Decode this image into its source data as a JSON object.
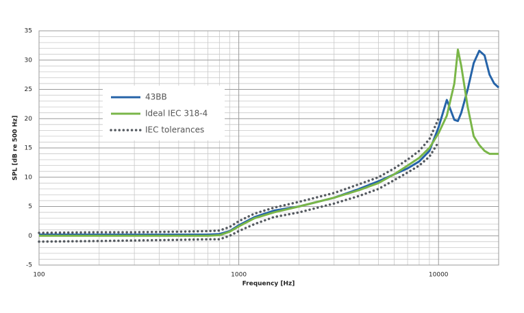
{
  "chart_data": {
    "type": "line",
    "log_x": true,
    "grid": true,
    "xlabel": "Frequency [Hz]",
    "ylabel": "SPL [dB re 500 Hz]",
    "xlim": [
      100,
      20000
    ],
    "ylim": [
      -5,
      35
    ],
    "xticks": [
      100,
      1000,
      10000
    ],
    "yticks": [
      -5,
      0,
      5,
      10,
      15,
      20,
      25,
      30,
      35
    ],
    "x": [
      100,
      200,
      300,
      500,
      700,
      800,
      900,
      1000,
      1200,
      1500,
      2000,
      3000,
      4000,
      5000,
      6000,
      7000,
      8000,
      9000,
      10000,
      11000,
      12000,
      12500,
      13000,
      14000,
      15000,
      16000,
      17000,
      18000,
      19000,
      20000
    ],
    "series": [
      {
        "name": "43BB",
        "color": "#2563a8",
        "style": "solid",
        "values": [
          0.2,
          0.2,
          0.2,
          0.2,
          0.2,
          0.3,
          0.8,
          1.8,
          3.2,
          4.3,
          5.0,
          6.5,
          8.0,
          9.3,
          10.5,
          11.5,
          12.7,
          14.5,
          18.5,
          23.2,
          19.8,
          19.6,
          21,
          25,
          29.5,
          31.6,
          30.8,
          27.5,
          26,
          25.3
        ]
      },
      {
        "name": "Ideal IEC 318-4",
        "color": "#7ab648",
        "style": "solid",
        "values": [
          0,
          0,
          0,
          0,
          0,
          0.1,
          0.7,
          1.6,
          3.0,
          4.0,
          5.0,
          6.5,
          7.8,
          9.0,
          10.5,
          12,
          13.3,
          15,
          17.5,
          20.5,
          26,
          31.8,
          29,
          22,
          17,
          15.5,
          14.5,
          14,
          14,
          14
        ]
      },
      {
        "name": "IEC tolerances",
        "color": "#555a60",
        "style": "dotted",
        "upper": [
          0.5,
          0.6,
          0.6,
          0.7,
          0.8,
          0.9,
          1.5,
          2.5,
          3.8,
          4.8,
          5.8,
          7.3,
          8.8,
          10,
          11.5,
          13,
          14.5,
          16.5,
          20,
          null,
          null,
          null,
          null,
          null,
          null,
          null,
          null,
          null,
          null,
          null
        ],
        "lower": [
          -1,
          -0.9,
          -0.8,
          -0.7,
          -0.6,
          -0.6,
          0,
          0.8,
          2,
          3.2,
          4.0,
          5.5,
          6.8,
          8,
          9.5,
          10.8,
          12,
          13.5,
          16,
          null,
          null,
          null,
          null,
          null,
          null,
          null,
          null,
          null,
          null,
          null
        ]
      }
    ]
  }
}
